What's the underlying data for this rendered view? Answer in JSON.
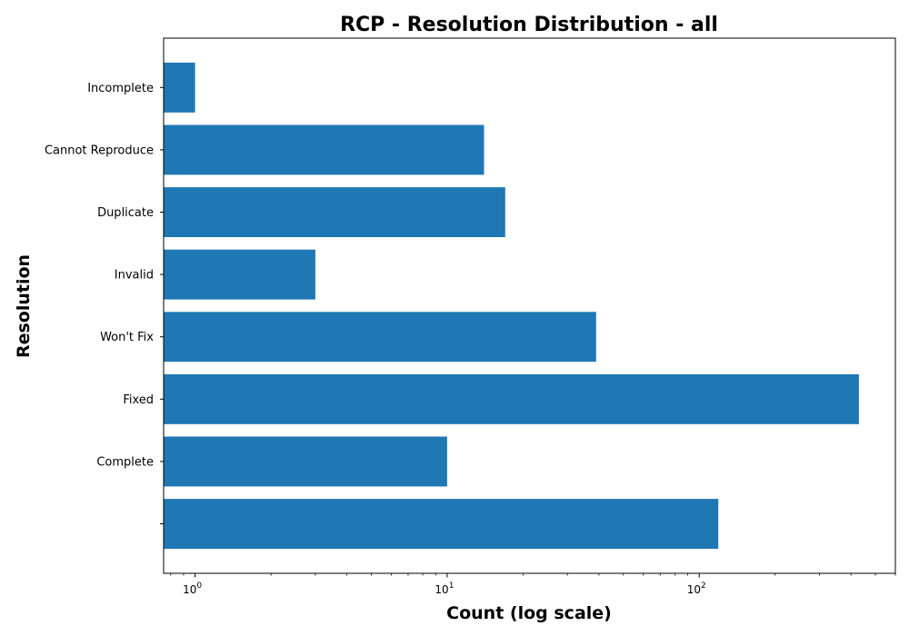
{
  "chart_data": {
    "type": "bar",
    "orientation": "horizontal",
    "title": "RCP - Resolution Distribution - all",
    "xlabel": "Count (log scale)",
    "ylabel": "Resolution",
    "x_scale": "log",
    "xlim": [
      0.75,
      600
    ],
    "x_ticks": [
      {
        "value": 1,
        "base": "10",
        "exp": "0"
      },
      {
        "value": 10,
        "base": "10",
        "exp": "1"
      },
      {
        "value": 100,
        "base": "10",
        "exp": "2"
      }
    ],
    "categories": [
      "",
      "Complete",
      "Fixed",
      "Won't Fix",
      "Invalid",
      "Duplicate",
      "Cannot Reproduce",
      "Incomplete"
    ],
    "values": [
      119,
      10,
      430,
      39,
      3,
      17,
      14,
      1
    ],
    "bar_color": "#1f77b4",
    "grid": false,
    "legend": "none"
  }
}
